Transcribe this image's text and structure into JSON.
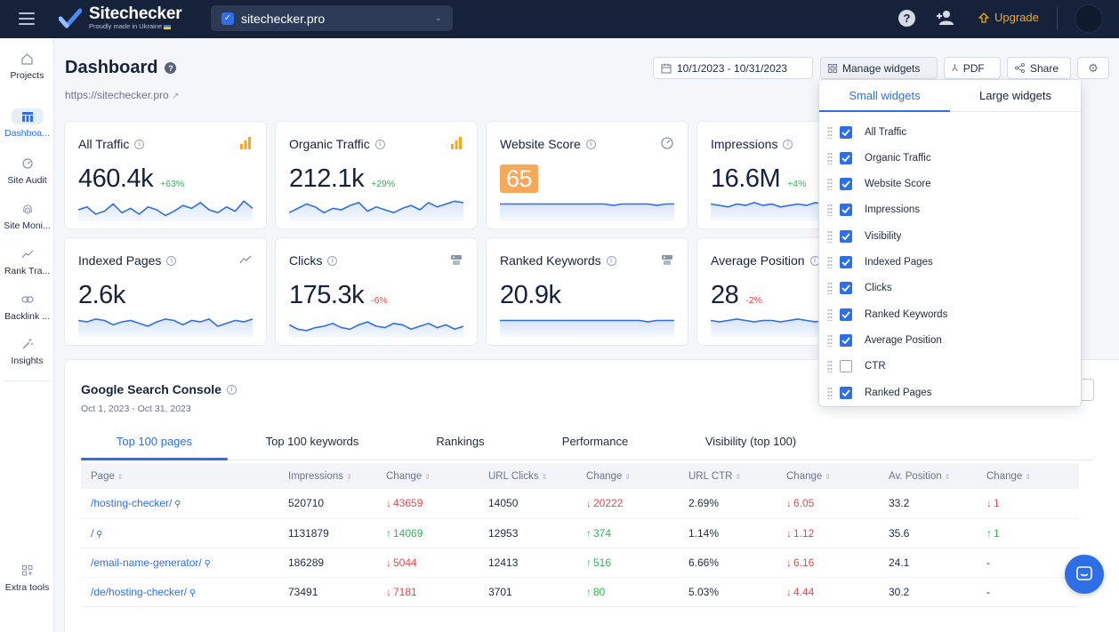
{
  "brand": {
    "name": "Sitechecker",
    "tagline": "Proudly made in Ukraine"
  },
  "site_selector": {
    "value": "sitechecker.pro"
  },
  "topbar": {
    "upgrade_label": "Upgrade"
  },
  "sidebar": {
    "items": [
      {
        "label": "Projects",
        "icon": "home-icon"
      },
      {
        "label": "Dashboa...",
        "icon": "dashboard-icon"
      },
      {
        "label": "Site Audit",
        "icon": "gauge-icon"
      },
      {
        "label": "Site Moni...",
        "icon": "fingerprint-icon"
      },
      {
        "label": "Rank Tra...",
        "icon": "trend-icon"
      },
      {
        "label": "Backlink ...",
        "icon": "link-icon"
      },
      {
        "label": "Insights",
        "icon": "wand-icon"
      },
      {
        "label": "Extra tools",
        "icon": "grid-plus-icon"
      }
    ]
  },
  "header": {
    "title": "Dashboard",
    "url": "https://sitechecker.pro",
    "date_range": "10/1/2023 - 10/31/2023",
    "manage_widgets_label": "Manage widgets",
    "pdf_label": "PDF",
    "share_label": "Share"
  },
  "cards": [
    {
      "title": "All Traffic",
      "value": "460.4k",
      "delta": "+63%",
      "trend": "up",
      "spark": [
        8,
        10,
        5,
        7,
        12,
        6,
        9,
        5,
        10,
        8,
        4,
        7,
        11,
        9,
        13,
        8,
        6,
        10,
        7,
        14,
        9
      ]
    },
    {
      "title": "Organic Traffic",
      "value": "212.1k",
      "delta": "+29%",
      "trend": "up",
      "spark": [
        6,
        9,
        12,
        10,
        6,
        9,
        8,
        11,
        13,
        7,
        10,
        8,
        6,
        9,
        11,
        8,
        13,
        10,
        12,
        14,
        13
      ]
    },
    {
      "title": "Website Score",
      "value": "65",
      "delta": "",
      "trend": "none",
      "spark": [
        12,
        12,
        12,
        12,
        12,
        12,
        12,
        12,
        12,
        12,
        12,
        12,
        12,
        11,
        12,
        12,
        12,
        12,
        11,
        12,
        12
      ]
    },
    {
      "title": "Impressions",
      "value": "16.6M",
      "delta": "+4%",
      "trend": "up",
      "spark": [
        12,
        11,
        10,
        12,
        11,
        13,
        11,
        12,
        10,
        11,
        12,
        11,
        13,
        12,
        11,
        12,
        10,
        11,
        12,
        11,
        12
      ]
    },
    {
      "title": "Indexed Pages",
      "value": "2.6k",
      "delta": "",
      "trend": "none",
      "spark": [
        12,
        11,
        13,
        12,
        9,
        11,
        12,
        10,
        8,
        11,
        13,
        12,
        9,
        12,
        11,
        13,
        8,
        10,
        12,
        11,
        13
      ]
    },
    {
      "title": "Clicks",
      "value": "175.3k",
      "delta": "-6%",
      "trend": "down",
      "spark": [
        9,
        6,
        5,
        7,
        8,
        10,
        7,
        6,
        9,
        11,
        8,
        7,
        10,
        9,
        6,
        8,
        10,
        7,
        9,
        6,
        8
      ]
    },
    {
      "title": "Ranked Keywords",
      "value": "20.9k",
      "delta": "",
      "trend": "none",
      "spark": [
        12,
        12,
        12,
        12,
        12,
        12,
        12,
        12,
        12,
        12,
        12,
        12,
        12,
        12,
        12,
        12,
        12,
        11,
        12,
        12,
        12
      ]
    },
    {
      "title": "Average Position",
      "value": "28",
      "delta": "-2%",
      "trend": "down",
      "spark": [
        12,
        11,
        12,
        13,
        12,
        11,
        12,
        12,
        11,
        12,
        13,
        12,
        11,
        12,
        12,
        11,
        12,
        12,
        11,
        12,
        12
      ]
    }
  ],
  "widgets_dropdown": {
    "tabs": [
      "Small widgets",
      "Large widgets"
    ],
    "items": [
      {
        "label": "All Traffic",
        "checked": true
      },
      {
        "label": "Organic Traffic",
        "checked": true
      },
      {
        "label": "Website Score",
        "checked": true
      },
      {
        "label": "Impressions",
        "checked": true
      },
      {
        "label": "Visibility",
        "checked": true
      },
      {
        "label": "Indexed Pages",
        "checked": true
      },
      {
        "label": "Clicks",
        "checked": true
      },
      {
        "label": "Ranked Keywords",
        "checked": true
      },
      {
        "label": "Average Position",
        "checked": true
      },
      {
        "label": "CTR",
        "checked": false
      },
      {
        "label": "Ranked Pages",
        "checked": true
      }
    ]
  },
  "gsc": {
    "title": "Google Search Console",
    "date_range": "Oct 1, 2023 - Oct 31, 2023",
    "tabs": [
      "Top 100 pages",
      "Top 100 keywords",
      "Rankings",
      "Performance",
      "Visibility (top 100)"
    ],
    "columns": [
      "Page",
      "Impressions",
      "Change",
      "URL Clicks",
      "Change",
      "URL CTR",
      "Change",
      "Av. Position",
      "Change"
    ],
    "rows": [
      {
        "page": "/hosting-checker/",
        "impressions": "520710",
        "imp_change": "43659",
        "imp_dir": "down",
        "clicks": "14050",
        "clicks_change": "20222",
        "clicks_dir": "down",
        "ctr": "2.69%",
        "ctr_change": "6.05",
        "ctr_dir": "down",
        "pos": "33.2",
        "pos_change": "1",
        "pos_dir": "down"
      },
      {
        "page": "/",
        "impressions": "1131879",
        "imp_change": "14069",
        "imp_dir": "up",
        "clicks": "12953",
        "clicks_change": "374",
        "clicks_dir": "up",
        "ctr": "1.14%",
        "ctr_change": "1.12",
        "ctr_dir": "down",
        "pos": "35.6",
        "pos_change": "1",
        "pos_dir": "up"
      },
      {
        "page": "/email-name-generator/",
        "impressions": "186289",
        "imp_change": "5044",
        "imp_dir": "down",
        "clicks": "12413",
        "clicks_change": "516",
        "clicks_dir": "up",
        "ctr": "6.66%",
        "ctr_change": "6.16",
        "ctr_dir": "down",
        "pos": "24.1",
        "pos_change": "-",
        "pos_dir": "none"
      },
      {
        "page": "/de/hosting-checker/",
        "impressions": "73491",
        "imp_change": "7181",
        "imp_dir": "down",
        "clicks": "3701",
        "clicks_change": "80",
        "clicks_dir": "up",
        "ctr": "5.03%",
        "ctr_change": "4.44",
        "ctr_dir": "down",
        "pos": "30.2",
        "pos_change": "-",
        "pos_dir": "none"
      }
    ]
  },
  "colors": {
    "accent": "#2e6ee6",
    "topbar": "#15223a",
    "up": "#2fb65a",
    "down": "#e5484d",
    "score": "#f6a95a",
    "upgrade": "#f6a623"
  }
}
